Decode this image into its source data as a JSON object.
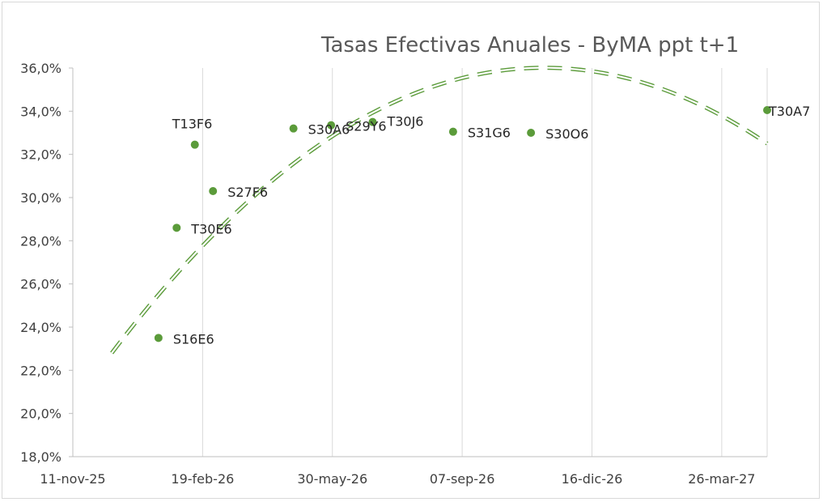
{
  "chart_data": {
    "type": "scatter",
    "title": "Tasas Efectivas Anuales - ByMA ppt t+1",
    "xlabel": "",
    "ylabel": "",
    "x_axis": {
      "type": "date",
      "range": [
        "2025-11-11",
        "2027-04-30"
      ],
      "ticks": [
        {
          "date": "2025-11-11",
          "label": "11-nov-25"
        },
        {
          "date": "2026-02-19",
          "label": "19-feb-26"
        },
        {
          "date": "2026-05-30",
          "label": "30-may-26"
        },
        {
          "date": "2026-09-07",
          "label": "07-sep-26"
        },
        {
          "date": "2026-12-16",
          "label": "16-dic-26"
        },
        {
          "date": "2027-03-26",
          "label": "26-mar-27"
        }
      ]
    },
    "y_axis": {
      "range": [
        18.0,
        36.0
      ],
      "ticks": [
        {
          "value": 18,
          "label": "18,0%"
        },
        {
          "value": 20,
          "label": "20,0%"
        },
        {
          "value": 22,
          "label": "22,0%"
        },
        {
          "value": 24,
          "label": "24,0%"
        },
        {
          "value": 26,
          "label": "26,0%"
        },
        {
          "value": 28,
          "label": "28,0%"
        },
        {
          "value": 30,
          "label": "30,0%"
        },
        {
          "value": 32,
          "label": "32,0%"
        },
        {
          "value": 34,
          "label": "34,0%"
        },
        {
          "value": 36,
          "label": "36,0%"
        }
      ]
    },
    "grid": "vertical",
    "legend": "none",
    "points": [
      {
        "label": "S16E6",
        "date": "2026-01-16",
        "value": 23.5
      },
      {
        "label": "T30E6",
        "date": "2026-01-30",
        "value": 28.6
      },
      {
        "label": "T13F6",
        "date": "2026-02-13",
        "value": 32.45
      },
      {
        "label": "S27F6",
        "date": "2026-02-27",
        "value": 30.3
      },
      {
        "label": "S30A6",
        "date": "2026-04-30",
        "value": 33.2
      },
      {
        "label": "S29Y6",
        "date": "2026-05-29",
        "value": 33.35
      },
      {
        "label": "T30J6",
        "date": "2026-06-30",
        "value": 33.5
      },
      {
        "label": "S31G6",
        "date": "2026-08-31",
        "value": 33.05
      },
      {
        "label": "S30O6",
        "date": "2026-10-30",
        "value": 33.0
      },
      {
        "label": "T30A7",
        "date": "2027-04-30",
        "value": 34.05
      }
    ],
    "trendline": {
      "type": "polynomial",
      "start_date": "2025-12-11",
      "end_date": "2027-04-30",
      "anchors": [
        {
          "date": "2025-12-11",
          "value": 22.8
        },
        {
          "date": "2026-10-30",
          "value": 36.0
        },
        {
          "date": "2027-04-30",
          "value": 32.5
        }
      ]
    },
    "colors": {
      "marker": "#5b9b3a",
      "trendline": "#5b9b3a",
      "grid": "#d9d9d9",
      "axis": "#bfbfbf"
    }
  }
}
